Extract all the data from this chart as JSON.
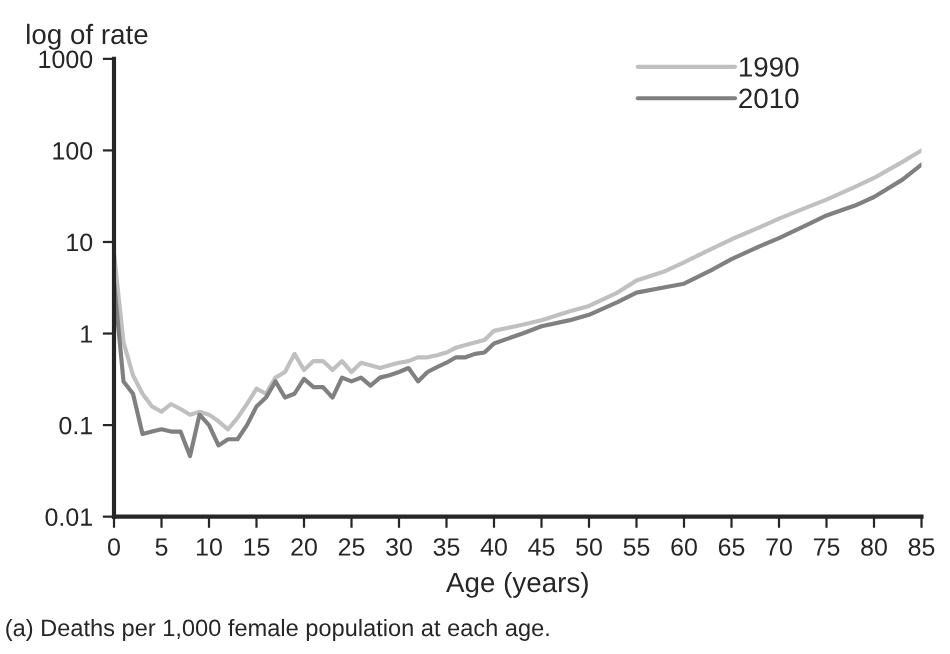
{
  "chart_data": {
    "type": "line",
    "ylabel": "log of rate",
    "xlabel": "Age (years)",
    "log": "y",
    "legend": "top right",
    "grid": false,
    "marker": "none",
    "line_style": "solid",
    "xlim": [
      0,
      85
    ],
    "xticks": [
      0,
      5,
      10,
      15,
      20,
      25,
      30,
      35,
      40,
      45,
      50,
      55,
      60,
      65,
      70,
      75,
      80,
      85
    ],
    "ylim": [
      0.01,
      1000
    ],
    "yticks": [
      0.01,
      0.1,
      1,
      10,
      100,
      1000
    ],
    "annotations": [
      "(a) Deaths per 1,000 female population at each age."
    ],
    "series": [
      {
        "name": "1990",
        "color": "#c0c0c0",
        "x": [
          0,
          1,
          2,
          3,
          4,
          5,
          6,
          7,
          8,
          9,
          10,
          11,
          12,
          13,
          14,
          15,
          16,
          17,
          18,
          19,
          20,
          21,
          22,
          23,
          24,
          25,
          26,
          27,
          28,
          29,
          30,
          31,
          32,
          33,
          34,
          35,
          36,
          37,
          38,
          39,
          40,
          43,
          45,
          48,
          50,
          53,
          55,
          58,
          60,
          63,
          65,
          68,
          70,
          73,
          75,
          78,
          80,
          83,
          85
        ],
        "values": [
          7.5,
          0.8,
          0.35,
          0.22,
          0.16,
          0.14,
          0.17,
          0.15,
          0.13,
          0.14,
          0.13,
          0.11,
          0.09,
          0.12,
          0.17,
          0.25,
          0.22,
          0.33,
          0.38,
          0.6,
          0.4,
          0.5,
          0.5,
          0.4,
          0.5,
          0.38,
          0.48,
          0.45,
          0.42,
          0.45,
          0.48,
          0.5,
          0.55,
          0.55,
          0.58,
          0.62,
          0.7,
          0.75,
          0.8,
          0.85,
          1.07,
          1.25,
          1.4,
          1.75,
          2.0,
          2.8,
          3.8,
          4.8,
          6.0,
          8.5,
          10.7,
          14.5,
          18,
          24,
          29,
          40,
          50,
          75,
          100
        ]
      },
      {
        "name": "2010",
        "color": "#808080",
        "x": [
          0,
          1,
          2,
          3,
          4,
          5,
          6,
          7,
          8,
          9,
          10,
          11,
          12,
          13,
          14,
          15,
          16,
          17,
          18,
          19,
          20,
          21,
          22,
          23,
          24,
          25,
          26,
          27,
          28,
          29,
          30,
          31,
          32,
          33,
          34,
          35,
          36,
          37,
          38,
          39,
          40,
          43,
          45,
          48,
          50,
          53,
          55,
          58,
          60,
          63,
          65,
          68,
          70,
          73,
          75,
          78,
          80,
          83,
          85
        ],
        "values": [
          3.7,
          0.3,
          0.22,
          0.08,
          0.085,
          0.09,
          0.085,
          0.085,
          0.046,
          0.13,
          0.1,
          0.06,
          0.07,
          0.07,
          0.1,
          0.16,
          0.2,
          0.3,
          0.2,
          0.22,
          0.32,
          0.26,
          0.26,
          0.2,
          0.33,
          0.3,
          0.33,
          0.27,
          0.33,
          0.35,
          0.38,
          0.42,
          0.3,
          0.38,
          0.43,
          0.48,
          0.55,
          0.55,
          0.6,
          0.62,
          0.78,
          1.0,
          1.2,
          1.4,
          1.6,
          2.2,
          2.8,
          3.2,
          3.5,
          5.0,
          6.5,
          9.0,
          11,
          15.5,
          19.5,
          25,
          31,
          48,
          70
        ]
      }
    ]
  }
}
